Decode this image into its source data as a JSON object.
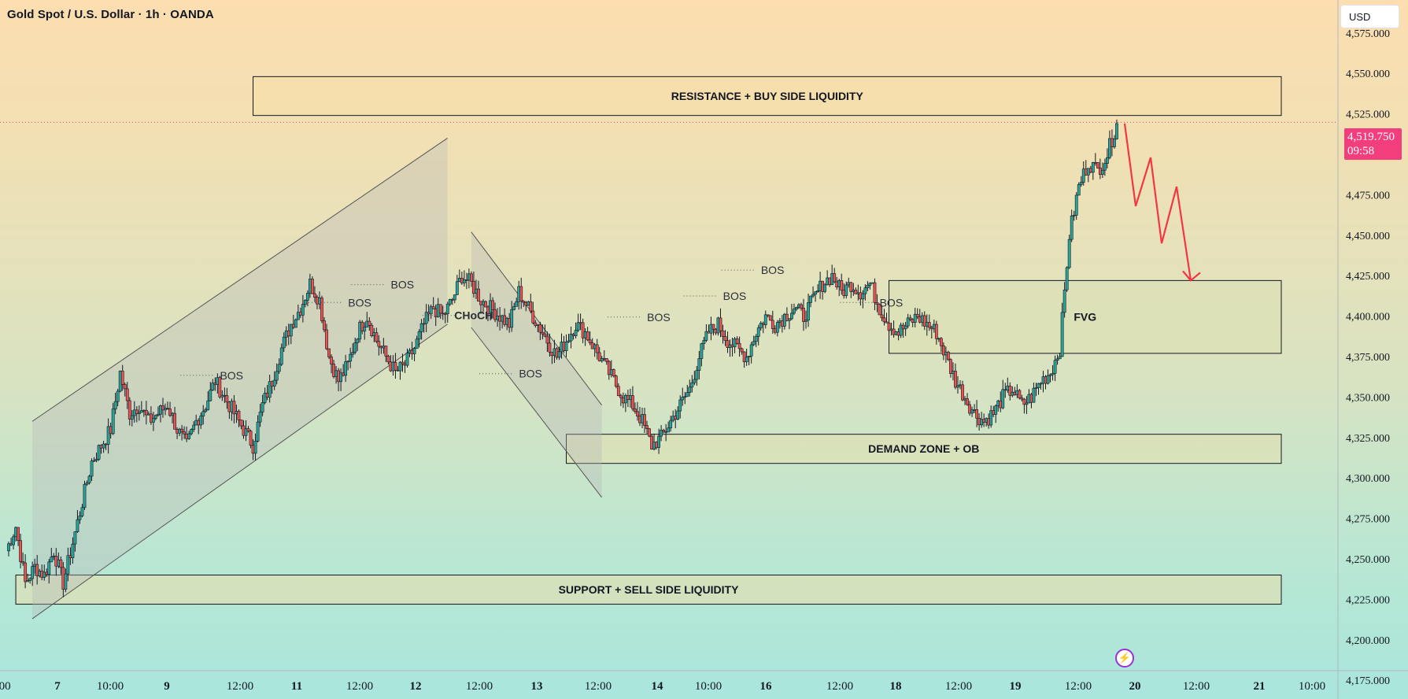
{
  "header": {
    "title": "Gold Spot / U.S. Dollar · 1h · OANDA",
    "currency": "USD"
  },
  "price_tag": {
    "price": "4,519.750",
    "countdown": "09:58",
    "color": "#f23e7c"
  },
  "colors": {
    "up": "#26a69a",
    "down": "#ef5350",
    "wick": "#131722",
    "zone_fill": "#f5dfaa",
    "zone_fill_green": "#dce0b6",
    "arrow": "#f23645"
  },
  "chart_data": {
    "type": "candlestick",
    "title": "Gold Spot / U.S. Dollar · 1h · OANDA",
    "ylim": [
      4160,
      4590
    ],
    "yticks": [
      "4,175.000",
      "4,200.000",
      "4,225.000",
      "4,250.000",
      "4,275.000",
      "4,300.000",
      "4,325.000",
      "4,350.000",
      "4,375.000",
      "4,400.000",
      "4,425.000",
      "4,450.000",
      "4,475.000",
      "4,500.000",
      "4,525.000",
      "4,550.000",
      "4,575.000"
    ],
    "yticks_values": [
      4175,
      4200,
      4225,
      4250,
      4275,
      4300,
      4325,
      4350,
      4375,
      4400,
      4425,
      4450,
      4475,
      4500,
      4525,
      4550,
      4575
    ],
    "xticks": [
      ":00",
      "7",
      "10:00",
      "9",
      "12:00",
      "11",
      "12:00",
      "12",
      "12:00",
      "13",
      "12:00",
      "14",
      "10:00",
      "16",
      "12:00",
      "18",
      "12:00",
      "19",
      "12:00",
      "20",
      "12:00",
      "21",
      "10:00"
    ],
    "xticks_bold": [
      "7",
      "9",
      "11",
      "12",
      "13",
      "14",
      "16",
      "18",
      "19",
      "20",
      "21"
    ],
    "last_price": 4519.75,
    "close_path": [
      [
        0,
        4255
      ],
      [
        4,
        4270
      ],
      [
        8,
        4235
      ],
      [
        12,
        4245
      ],
      [
        16,
        4240
      ],
      [
        20,
        4255
      ],
      [
        24,
        4235
      ],
      [
        28,
        4260
      ],
      [
        32,
        4285
      ],
      [
        36,
        4310
      ],
      [
        40,
        4320
      ],
      [
        44,
        4330
      ],
      [
        48,
        4365
      ],
      [
        52,
        4340
      ],
      [
        56,
        4345
      ],
      [
        60,
        4335
      ],
      [
        64,
        4340
      ],
      [
        68,
        4345
      ],
      [
        72,
        4330
      ],
      [
        76,
        4320
      ],
      [
        80,
        4335
      ],
      [
        84,
        4345
      ],
      [
        88,
        4360
      ],
      [
        92,
        4350
      ],
      [
        96,
        4340
      ],
      [
        100,
        4330
      ],
      [
        104,
        4320
      ],
      [
        108,
        4345
      ],
      [
        112,
        4360
      ],
      [
        116,
        4380
      ],
      [
        120,
        4395
      ],
      [
        124,
        4405
      ],
      [
        128,
        4420
      ],
      [
        132,
        4410
      ],
      [
        136,
        4375
      ],
      [
        140,
        4360
      ],
      [
        144,
        4370
      ],
      [
        148,
        4390
      ],
      [
        152,
        4400
      ],
      [
        156,
        4385
      ],
      [
        160,
        4375
      ],
      [
        164,
        4365
      ],
      [
        168,
        4370
      ],
      [
        172,
        4380
      ],
      [
        176,
        4395
      ],
      [
        180,
        4405
      ],
      [
        184,
        4400
      ],
      [
        188,
        4410
      ],
      [
        192,
        4425
      ],
      [
        196,
        4420
      ],
      [
        200,
        4410
      ],
      [
        204,
        4405
      ],
      [
        208,
        4400
      ],
      [
        212,
        4395
      ],
      [
        216,
        4415
      ],
      [
        220,
        4405
      ],
      [
        224,
        4395
      ],
      [
        228,
        4385
      ],
      [
        232,
        4375
      ],
      [
        236,
        4385
      ],
      [
        240,
        4395
      ],
      [
        244,
        4390
      ],
      [
        248,
        4380
      ],
      [
        252,
        4370
      ],
      [
        256,
        4360
      ],
      [
        260,
        4350
      ],
      [
        264,
        4345
      ],
      [
        268,
        4335
      ],
      [
        272,
        4320
      ],
      [
        276,
        4325
      ],
      [
        280,
        4335
      ],
      [
        284,
        4345
      ],
      [
        288,
        4355
      ],
      [
        292,
        4375
      ],
      [
        296,
        4390
      ],
      [
        300,
        4395
      ],
      [
        304,
        4385
      ],
      [
        308,
        4380
      ],
      [
        312,
        4375
      ],
      [
        316,
        4390
      ],
      [
        320,
        4400
      ],
      [
        324,
        4395
      ],
      [
        328,
        4400
      ],
      [
        332,
        4405
      ],
      [
        336,
        4400
      ],
      [
        340,
        4410
      ],
      [
        344,
        4420
      ],
      [
        348,
        4425
      ],
      [
        352,
        4415
      ],
      [
        356,
        4420
      ],
      [
        360,
        4415
      ],
      [
        364,
        4420
      ],
      [
        368,
        4405
      ],
      [
        372,
        4395
      ],
      [
        376,
        4390
      ],
      [
        380,
        4395
      ],
      [
        384,
        4400
      ],
      [
        388,
        4395
      ],
      [
        392,
        4390
      ],
      [
        396,
        4375
      ],
      [
        400,
        4360
      ],
      [
        404,
        4350
      ],
      [
        408,
        4340
      ],
      [
        412,
        4335
      ],
      [
        416,
        4340
      ],
      [
        420,
        4350
      ],
      [
        424,
        4355
      ],
      [
        428,
        4345
      ],
      [
        432,
        4350
      ],
      [
        436,
        4360
      ],
      [
        440,
        4365
      ],
      [
        444,
        4380
      ],
      [
        448,
        4450
      ],
      [
        452,
        4480
      ],
      [
        456,
        4495
      ],
      [
        460,
        4490
      ],
      [
        464,
        4500
      ],
      [
        468,
        4519
      ]
    ],
    "channel_up": {
      "top": [
        [
          0,
          4335
        ],
        [
          175,
          4510
        ]
      ],
      "bottom": [
        [
          0,
          4213
        ],
        [
          175,
          4395
        ]
      ]
    },
    "channel_down": {
      "top": [
        [
          185,
          4452
        ],
        [
          240,
          4345
        ]
      ],
      "bottom": [
        [
          185,
          4393
        ],
        [
          240,
          4288
        ]
      ]
    },
    "zones": [
      {
        "label": "RESISTANCE + BUY SIDE LIQUIDITY",
        "from_idx": 104,
        "to_idx": 448,
        "top": 4548,
        "bottom": 4524
      },
      {
        "label": "FVG",
        "from_idx": 372,
        "to_idx": 448,
        "top": 4422,
        "bottom": 4377
      },
      {
        "label": "DEMAND ZONE + OB",
        "from_idx": 236,
        "to_idx": 448,
        "top": 4327,
        "bottom": 4309
      },
      {
        "label": "SUPPORT + SELL SIDE LIQUIDITY",
        "from_idx": 4,
        "to_idx": 448,
        "top": 4240,
        "bottom": 4222
      }
    ],
    "annotations": [
      {
        "text": "BOS",
        "x": 84,
        "y": 4361
      },
      {
        "text": "BOS",
        "x": 138,
        "y": 4406
      },
      {
        "text": "BOS",
        "x": 156,
        "y": 4417
      },
      {
        "text": "CHoCH",
        "x": 186,
        "y": 4398
      },
      {
        "text": "BOS",
        "x": 210,
        "y": 4362
      },
      {
        "text": "BOS",
        "x": 264,
        "y": 4397
      },
      {
        "text": "BOS",
        "x": 296,
        "y": 4410
      },
      {
        "text": "BOS",
        "x": 312,
        "y": 4426
      },
      {
        "text": "BOS",
        "x": 362,
        "y": 4406
      }
    ],
    "projection": [
      [
        4519,
        4519
      ],
      [
        4468,
        4468
      ],
      [
        4498,
        4498
      ],
      [
        4445,
        4445
      ],
      [
        4480,
        4480
      ],
      [
        4422,
        4422
      ]
    ]
  }
}
